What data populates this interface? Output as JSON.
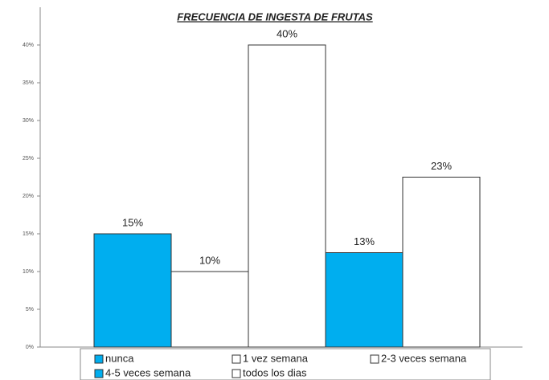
{
  "chart_data": {
    "type": "bar",
    "title": "FRECUENCIA DE INGESTA DE FRUTAS",
    "series": [
      {
        "name": "nunca",
        "color": "#00aeef",
        "values": [
          15
        ],
        "value_labels": [
          "15%"
        ]
      },
      {
        "name": "1 vez semana",
        "color": "#ffffff",
        "values": [
          10
        ],
        "value_labels": [
          "10%"
        ]
      },
      {
        "name": "2-3 veces semana",
        "color": "#ffffff",
        "values": [
          40
        ],
        "value_labels": [
          "40%"
        ]
      },
      {
        "name": "4-5 veces semana",
        "color": "#00aeef",
        "values": [
          12.5
        ],
        "value_labels": [
          "13%"
        ]
      },
      {
        "name": "todos los dias",
        "color": "#ffffff",
        "values": [
          22.5
        ],
        "value_labels": [
          "23%"
        ]
      }
    ],
    "ylim": [
      0,
      45
    ],
    "yticks": [
      {
        "value": 0,
        "label": "0%"
      },
      {
        "value": 5,
        "label": "5%"
      },
      {
        "value": 10,
        "label": "10%"
      },
      {
        "value": 15,
        "label": "15%"
      },
      {
        "value": 20,
        "label": "20%"
      },
      {
        "value": 25,
        "label": "25%"
      },
      {
        "value": 30,
        "label": "30%"
      },
      {
        "value": 35,
        "label": "35%"
      },
      {
        "value": 40,
        "label": "40%"
      }
    ],
    "legend": "bottom"
  }
}
